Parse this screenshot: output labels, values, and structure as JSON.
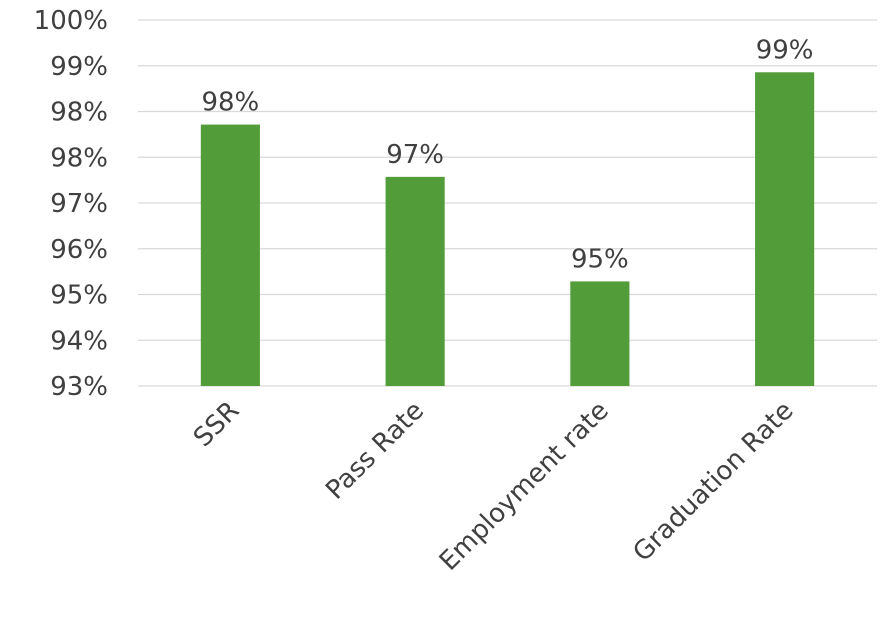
{
  "chart_data": {
    "type": "bar",
    "categories": [
      "SSR",
      "Pass Rate",
      "Employment rate",
      "Graduation Rate"
    ],
    "values": [
      98,
      97,
      95,
      99
    ],
    "data_labels": [
      "98%",
      "97%",
      "95%",
      "99%"
    ],
    "ytick_labels": [
      "93%",
      "94%",
      "95%",
      "96%",
      "97%",
      "98%",
      "98%",
      "99%",
      "100%"
    ],
    "ylim": [
      93,
      100
    ],
    "grid": true,
    "legend": "none",
    "bar_color": "#529c3a",
    "title": "",
    "xlabel": "",
    "ylabel": ""
  }
}
